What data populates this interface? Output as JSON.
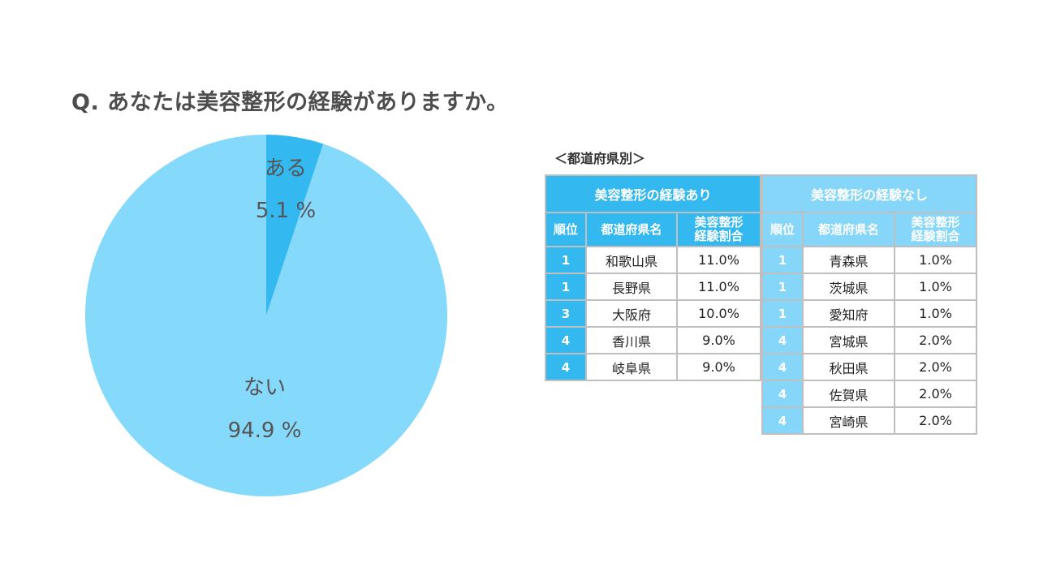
{
  "title": "Q. あなたは美容整形の経験がありますか。",
  "colors": {
    "yes": "#33b8f0",
    "no": "#85d9fb",
    "table_yes": "#33b8f0",
    "table_no": "#85d6f8"
  },
  "chart_data": [
    {
      "type": "pie",
      "categories": [
        "ある",
        "ない"
      ],
      "values": [
        5.1,
        94.9
      ],
      "value_labels": [
        "5.1 %",
        "94.9 %"
      ],
      "colors": [
        "#33b8f0",
        "#85d9fb"
      ]
    },
    {
      "type": "table",
      "subtitle": "＜都道府県別＞",
      "group_title": "美容整形の経験あり",
      "columns": [
        "順位",
        "都道府県名",
        "美容整形経験割合"
      ],
      "column_lines": [
        [
          "順位"
        ],
        [
          "都道府県名"
        ],
        [
          "美容整形",
          "経験割合"
        ]
      ],
      "rows": [
        [
          "1",
          "和歌山県",
          "11.0%"
        ],
        [
          "1",
          "長野県",
          "11.0%"
        ],
        [
          "3",
          "大阪府",
          "10.0%"
        ],
        [
          "4",
          "香川県",
          "9.0%"
        ],
        [
          "4",
          "岐阜県",
          "9.0%"
        ]
      ]
    },
    {
      "type": "table",
      "group_title": "美容整形の経験なし",
      "columns": [
        "順位",
        "都道府県名",
        "美容整形経験割合"
      ],
      "column_lines": [
        [
          "順位"
        ],
        [
          "都道府県名"
        ],
        [
          "美容整形",
          "経験割合"
        ]
      ],
      "rows": [
        [
          "1",
          "青森県",
          "1.0%"
        ],
        [
          "1",
          "茨城県",
          "1.0%"
        ],
        [
          "1",
          "愛知府",
          "1.0%"
        ],
        [
          "4",
          "宮城県",
          "2.0%"
        ],
        [
          "4",
          "秋田県",
          "2.0%"
        ],
        [
          "4",
          "佐賀県",
          "2.0%"
        ],
        [
          "4",
          "宮崎県",
          "2.0%"
        ]
      ]
    }
  ]
}
